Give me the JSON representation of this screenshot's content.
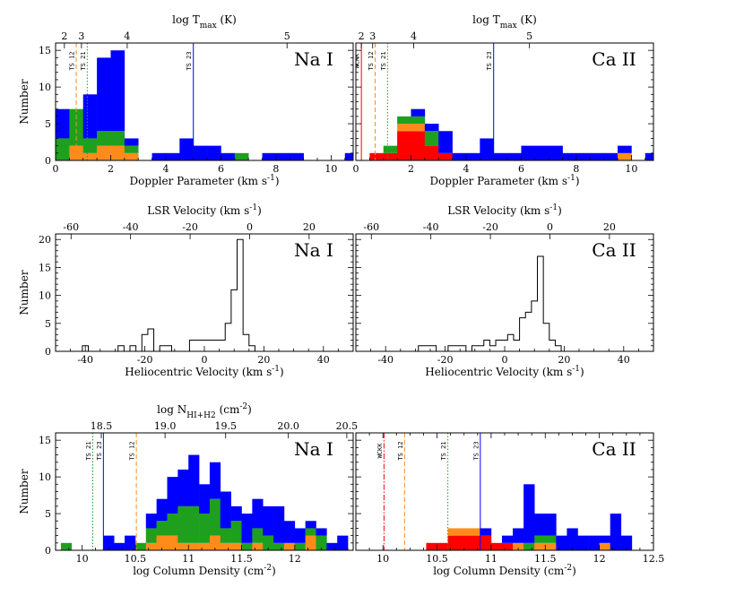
{
  "chart_data": [
    {
      "id": "top-left-na",
      "type": "bar",
      "ion": "Na I",
      "stacked": true,
      "xlabel": "Doppler Parameter (km s⁻¹)",
      "ylabel": "Number",
      "top_axis_label": "log T_max (K)",
      "xlim": [
        0,
        10.8
      ],
      "ylim": [
        0,
        16
      ],
      "xticks": [
        0,
        2,
        4,
        6,
        8,
        10
      ],
      "yticks": [
        0,
        5,
        10,
        15
      ],
      "top_ticks": [
        {
          "label": "2",
          "at": 0.32
        },
        {
          "label": "3",
          "at": 0.94
        },
        {
          "label": "4",
          "at": 2.6
        },
        {
          "label": "5",
          "at": 8.4
        }
      ],
      "bin_start": 0,
      "bin_width": 0.5,
      "series": [
        {
          "name": "orange",
          "color": "#ff8c1a",
          "values": [
            0,
            2,
            1,
            2,
            2,
            1,
            0,
            0,
            0,
            0,
            0,
            0,
            0,
            0,
            0,
            0,
            0,
            0,
            0,
            0,
            0,
            0
          ]
        },
        {
          "name": "green",
          "color": "#1ea01e",
          "values": [
            3,
            5,
            2,
            2,
            2,
            1,
            0,
            0,
            0,
            0,
            0,
            0,
            0,
            1,
            0,
            0,
            0,
            0,
            0,
            0,
            0,
            0
          ]
        },
        {
          "name": "blue",
          "color": "#0000ff",
          "values": [
            4,
            0,
            6,
            10,
            11,
            1,
            0,
            1,
            1,
            3,
            2,
            2,
            1,
            0,
            0,
            1,
            1,
            1,
            0,
            0,
            0,
            1
          ]
        }
      ],
      "vlines": [
        {
          "label": "TS 12",
          "x": 0.75,
          "color": "#ff8c1a",
          "style": "dashed"
        },
        {
          "label": "TS 21",
          "x": 1.15,
          "color": "#1ea01e",
          "style": "dotted"
        },
        {
          "label": "TS 23",
          "x": 5.0,
          "color": "#0000ff",
          "style": "solid"
        }
      ]
    },
    {
      "id": "top-right-ca",
      "type": "bar",
      "ion": "Ca II",
      "stacked": true,
      "xlabel": "Doppler Parameter (km s⁻¹)",
      "ylabel": "",
      "top_axis_label": "log T_max (K)",
      "xlim": [
        0,
        10.8
      ],
      "ylim": [
        0,
        16
      ],
      "xticks": [
        0,
        2,
        4,
        6,
        8,
        10
      ],
      "yticks": [
        0,
        5,
        10,
        15
      ],
      "top_ticks": [
        {
          "label": "2",
          "at": 0.2
        },
        {
          "label": "3",
          "at": 0.61
        },
        {
          "label": "4",
          "at": 2.1
        },
        {
          "label": "5",
          "at": 6.3
        }
      ],
      "bin_start": 0,
      "bin_width": 0.5,
      "series": [
        {
          "name": "red",
          "color": "#ff0000",
          "values": [
            0,
            1,
            1,
            4,
            4,
            2,
            1,
            0,
            0,
            0,
            0,
            0,
            0,
            0,
            0,
            0,
            0,
            0,
            0,
            0,
            0,
            0
          ]
        },
        {
          "name": "orange",
          "color": "#ff8c1a",
          "values": [
            0,
            0,
            0,
            1,
            1,
            0,
            0,
            0,
            0,
            0,
            0,
            0,
            0,
            0,
            0,
            0,
            0,
            0,
            0,
            1,
            0,
            0
          ]
        },
        {
          "name": "green",
          "color": "#1ea01e",
          "values": [
            0,
            0,
            1,
            1,
            1,
            2,
            0,
            0,
            0,
            0,
            0,
            0,
            0,
            0,
            0,
            0,
            0,
            0,
            0,
            0,
            0,
            0
          ]
        },
        {
          "name": "blue",
          "color": "#0000ff",
          "values": [
            0,
            0,
            0,
            0,
            1,
            1,
            3,
            1,
            1,
            3,
            1,
            1,
            2,
            2,
            2,
            1,
            1,
            1,
            1,
            1,
            0,
            1
          ]
        }
      ],
      "vlines": [
        {
          "label": "WCKK",
          "x": 0.2,
          "color": "#ff0000",
          "style": "solid"
        },
        {
          "label": "TS 12",
          "x": 0.7,
          "color": "#ff8c1a",
          "style": "dashed"
        },
        {
          "label": "TS 21",
          "x": 1.15,
          "color": "#1ea01e",
          "style": "dotted"
        },
        {
          "label": "TS 23",
          "x": 5.0,
          "color": "#0000ff",
          "style": "solid"
        }
      ]
    },
    {
      "id": "mid-left-na",
      "type": "line",
      "ion": "Na I",
      "xlabel": "Heliocentric Velocity (km s⁻¹)",
      "ylabel": "Number",
      "top_axis_label": "LSR Velocity (km s⁻¹)",
      "xlim": [
        -50,
        50
      ],
      "ylim": [
        0,
        21
      ],
      "xticks": [
        -40,
        -20,
        0,
        20,
        40
      ],
      "yticks": [
        0,
        5,
        10,
        15,
        20
      ],
      "top_ticks": [
        {
          "label": "-60",
          "at": -44.8
        },
        {
          "label": "-40",
          "at": -24.8
        },
        {
          "label": "-20",
          "at": -4.8
        },
        {
          "label": "0",
          "at": 15.2
        },
        {
          "label": "20",
          "at": 35.2
        }
      ],
      "bin_start": -45,
      "bin_width": 2,
      "values": [
        0,
        0,
        1,
        0,
        0,
        0,
        0,
        0,
        1,
        0,
        1,
        0,
        3,
        4,
        0,
        1,
        1,
        0,
        0,
        0,
        2,
        2,
        2,
        2,
        2,
        2,
        5,
        11,
        20,
        3,
        1,
        0,
        0,
        0,
        0,
        0,
        0,
        0,
        0,
        0,
        0,
        0,
        0,
        0,
        0
      ],
      "line_color": "#000000"
    },
    {
      "id": "mid-right-ca",
      "type": "line",
      "ion": "Ca II",
      "xlabel": "Heliocentric Velocity (km s⁻¹)",
      "ylabel": "",
      "top_axis_label": "LSR Velocity (km s⁻¹)",
      "xlim": [
        -50,
        50
      ],
      "ylim": [
        0,
        21
      ],
      "xticks": [
        -40,
        -20,
        0,
        20,
        40
      ],
      "yticks": [
        0,
        5,
        10,
        15,
        20
      ],
      "top_ticks": [
        {
          "label": "-60",
          "at": -44.8
        },
        {
          "label": "-40",
          "at": -24.8
        },
        {
          "label": "-20",
          "at": -4.8
        },
        {
          "label": "0",
          "at": 15.2
        },
        {
          "label": "20",
          "at": 35.2
        }
      ],
      "bin_start": -45,
      "bin_width": 2,
      "values": [
        0,
        0,
        0,
        0,
        0,
        0,
        0,
        0,
        1,
        1,
        1,
        0,
        0,
        1,
        1,
        1,
        0,
        1,
        1,
        2,
        1,
        2,
        2,
        3,
        2,
        6,
        7,
        9,
        17,
        5,
        2,
        1,
        0,
        0,
        0,
        0,
        0,
        0,
        0,
        0,
        0,
        0,
        0,
        0,
        0
      ],
      "line_color": "#000000"
    },
    {
      "id": "bottom-left-na",
      "type": "bar",
      "ion": "Na I",
      "stacked": true,
      "xlabel": "log Column Density (cm⁻²)",
      "ylabel": "Number",
      "top_axis_label": "log N_HI+H2 (cm⁻²)",
      "xlim": [
        9.75,
        12.55
      ],
      "ylim": [
        0,
        16
      ],
      "xticks": [
        10.0,
        10.5,
        11.0,
        11.5,
        12.0
      ],
      "yticks": [
        0,
        5,
        10,
        15
      ],
      "top_ticks": [
        {
          "label": "18.5",
          "at": 10.18
        },
        {
          "label": "19.0",
          "at": 10.78
        },
        {
          "label": "19.5",
          "at": 11.35
        },
        {
          "label": "20.0",
          "at": 11.94
        },
        {
          "label": "20.5",
          "at": 12.49
        }
      ],
      "bin_start": 9.8,
      "bin_width": 0.1,
      "series": [
        {
          "name": "orange",
          "color": "#ff8c1a",
          "values": [
            0,
            0,
            0,
            0,
            0,
            0,
            0,
            0,
            1,
            2,
            2,
            1,
            1,
            1,
            2,
            1,
            1,
            0,
            1,
            0,
            0,
            1,
            0,
            2,
            0,
            0,
            0,
            0
          ]
        },
        {
          "name": "green",
          "color": "#1ea01e",
          "values": [
            1,
            0,
            0,
            0,
            0,
            0,
            0,
            1,
            2,
            2,
            3,
            5,
            5,
            4,
            5,
            2,
            3,
            1,
            2,
            2,
            1,
            0,
            1,
            1,
            2,
            0,
            0,
            0
          ]
        },
        {
          "name": "blue",
          "color": "#0000ff",
          "values": [
            0,
            0,
            0,
            0,
            2,
            1,
            2,
            0,
            2,
            3,
            5,
            5,
            7,
            4,
            5,
            5,
            2,
            4,
            4,
            4,
            5,
            3,
            2,
            1,
            1,
            1,
            2,
            0
          ]
        }
      ],
      "vlines": [
        {
          "label": "TS 21",
          "x": 10.1,
          "color": "#1ea01e",
          "style": "dotted"
        },
        {
          "label": "TS 23",
          "x": 10.2,
          "color": "#0000ff",
          "style": "solid"
        },
        {
          "label": "TS 12",
          "x": 10.51,
          "color": "#ff8c1a",
          "style": "dashed"
        }
      ]
    },
    {
      "id": "bottom-right-ca",
      "type": "bar",
      "ion": "Ca II",
      "stacked": true,
      "xlabel": "log Column Density (cm⁻²)",
      "ylabel": "",
      "xlim": [
        9.75,
        12.5
      ],
      "ylim": [
        0,
        16
      ],
      "xticks": [
        10.0,
        10.5,
        11.0,
        11.5,
        12.0,
        12.5
      ],
      "yticks": [
        0,
        5,
        10,
        15
      ],
      "bin_start": 10.0,
      "bin_width": 0.1,
      "series": [
        {
          "name": "red",
          "color": "#ff0000",
          "values": [
            0,
            0,
            0,
            0,
            1,
            1,
            2,
            2,
            2,
            2,
            1,
            1,
            0,
            0,
            0,
            0,
            0,
            0,
            0,
            0,
            0,
            0,
            0,
            0
          ]
        },
        {
          "name": "orange",
          "color": "#ff8c1a",
          "values": [
            0,
            0,
            0,
            0,
            0,
            0,
            1,
            1,
            1,
            0,
            0,
            0,
            1,
            0,
            1,
            1,
            0,
            0,
            0,
            0,
            1,
            0,
            0,
            0
          ]
        },
        {
          "name": "green",
          "color": "#1ea01e",
          "values": [
            0,
            0,
            0,
            0,
            0,
            0,
            0,
            0,
            0,
            0,
            0,
            0,
            0,
            1,
            1,
            1,
            0,
            0,
            0,
            0,
            0,
            0,
            0,
            0
          ]
        },
        {
          "name": "blue",
          "color": "#0000ff",
          "values": [
            0,
            0,
            0,
            0,
            0,
            0,
            0,
            0,
            0,
            1,
            0,
            1,
            2,
            8,
            3,
            3,
            2,
            3,
            2,
            2,
            1,
            5,
            2,
            0
          ]
        }
      ],
      "vlines": [
        {
          "label": "WCKK",
          "x": 10.01,
          "color": "#ff0000",
          "style": "dashdot"
        },
        {
          "label": "TS 12",
          "x": 10.2,
          "color": "#ff8c1a",
          "style": "dashed"
        },
        {
          "label": "TS 21",
          "x": 10.6,
          "color": "#1ea01e",
          "style": "dotted"
        },
        {
          "label": "TS 23",
          "x": 10.9,
          "color": "#0000ff",
          "style": "solid"
        }
      ]
    }
  ]
}
